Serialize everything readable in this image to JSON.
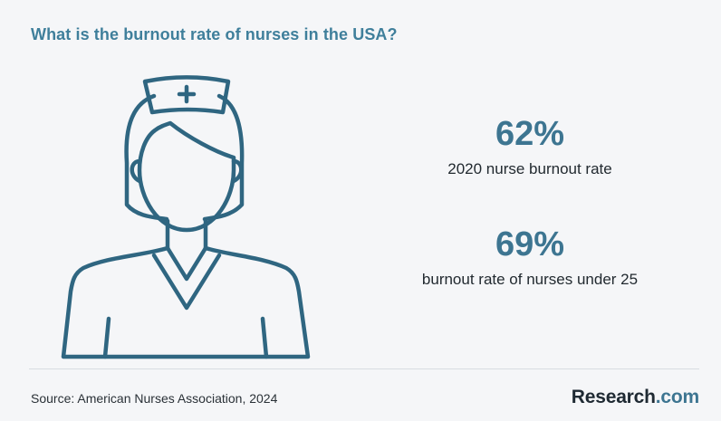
{
  "title": "What is the burnout rate of nurses in the USA?",
  "colors": {
    "accent": "#3d7591",
    "title": "#3f7f9b",
    "icon_stroke": "#2f6681",
    "text": "#222a30",
    "background": "#f5f6f8"
  },
  "illustration": {
    "icon": "nurse-icon"
  },
  "stats": [
    {
      "value": "62%",
      "label": "2020 nurse burnout rate"
    },
    {
      "value": "69%",
      "label": "burnout rate of nurses under 25"
    }
  ],
  "footer": {
    "source": "Source: American Nurses Association, 2024",
    "brand_name": "Research",
    "brand_dot": ".",
    "brand_tld": "com"
  }
}
